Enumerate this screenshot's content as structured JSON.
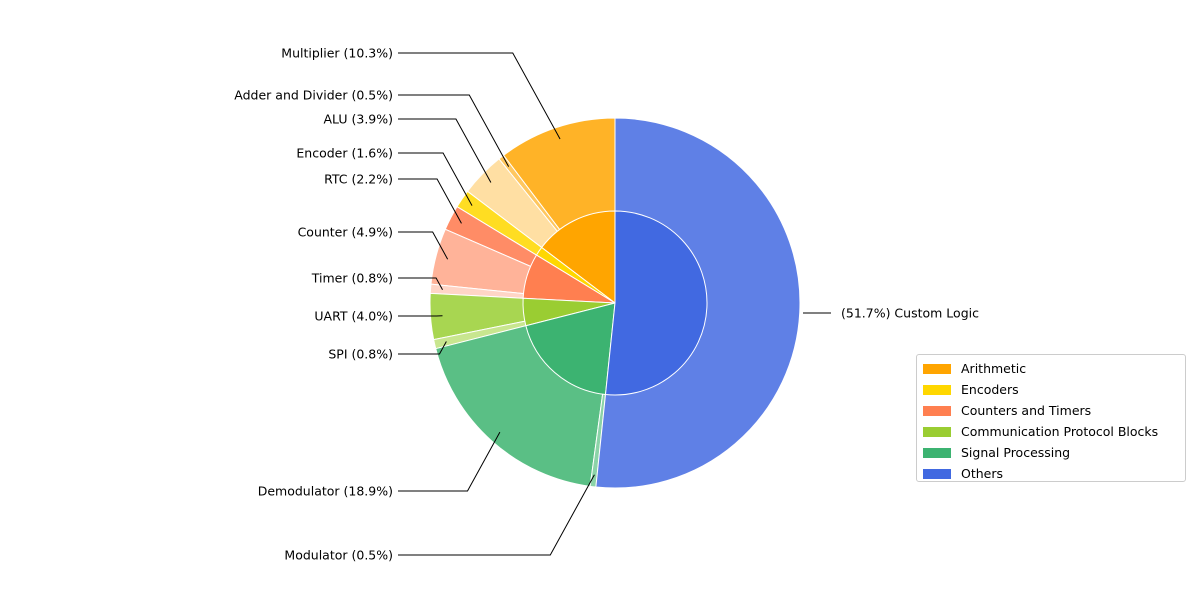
{
  "chart_data": {
    "type": "nested-pie",
    "title": "",
    "groups": [
      {
        "name": "Arithmetic",
        "color": "#FFA500",
        "children": [
          {
            "label": "Multiplier",
            "value": 10.3,
            "color": "#FFB327"
          },
          {
            "label": "Adder and Divider",
            "value": 0.5,
            "color": "#FFC75F"
          },
          {
            "label": "ALU",
            "value": 3.9,
            "color": "#FFDFA3"
          }
        ]
      },
      {
        "name": "Encoders",
        "color": "#FFD700",
        "children": [
          {
            "label": "Encoder",
            "value": 1.6,
            "color": "#FFDD22"
          }
        ]
      },
      {
        "name": "Counters and Timers",
        "color": "#FF7F50",
        "children": [
          {
            "label": "RTC",
            "value": 2.2,
            "color": "#FF8C66"
          },
          {
            "label": "Counter",
            "value": 4.9,
            "color": "#FFB399"
          },
          {
            "label": "Timer",
            "value": 0.8,
            "color": "#FFD5C6"
          }
        ]
      },
      {
        "name": "Communication Protocol Blocks",
        "color": "#9ACD32",
        "children": [
          {
            "label": "UART",
            "value": 4.0,
            "color": "#A8D651"
          },
          {
            "label": "SPI",
            "value": 0.8,
            "color": "#C8E68F"
          }
        ]
      },
      {
        "name": "Signal Processing",
        "color": "#3CB371",
        "children": [
          {
            "label": "Demodulator",
            "value": 18.9,
            "color": "#5ABF85"
          },
          {
            "label": "Modulator",
            "value": 0.5,
            "color": "#8BD3A8"
          }
        ]
      },
      {
        "name": "Others",
        "color": "#4169E1",
        "children": [
          {
            "label": "Custom Logic",
            "value": 51.7,
            "color": "#5F80E6"
          }
        ]
      }
    ],
    "outer_labels": [
      {
        "text": "Multiplier (10.3%)",
        "side": "left"
      },
      {
        "text": "Adder and Divider (0.5%)",
        "side": "left"
      },
      {
        "text": "ALU (3.9%)",
        "side": "left"
      },
      {
        "text": "Encoder (1.6%)",
        "side": "left"
      },
      {
        "text": "RTC (2.2%)",
        "side": "left"
      },
      {
        "text": "Counter (4.9%)",
        "side": "left"
      },
      {
        "text": "Timer (0.8%)",
        "side": "left"
      },
      {
        "text": "UART (4.0%)",
        "side": "left"
      },
      {
        "text": "SPI (0.8%)",
        "side": "left"
      },
      {
        "text": "Demodulator (18.9%)",
        "side": "left"
      },
      {
        "text": "Modulator (0.5%)",
        "side": "left"
      },
      {
        "text": "(51.7%) Custom Logic",
        "side": "right"
      }
    ],
    "legend": {
      "placement": "lower-right",
      "entries": [
        "Arithmetic",
        "Encoders",
        "Counters and Timers",
        "Communication Protocol Blocks",
        "Signal Processing",
        "Others"
      ]
    }
  }
}
